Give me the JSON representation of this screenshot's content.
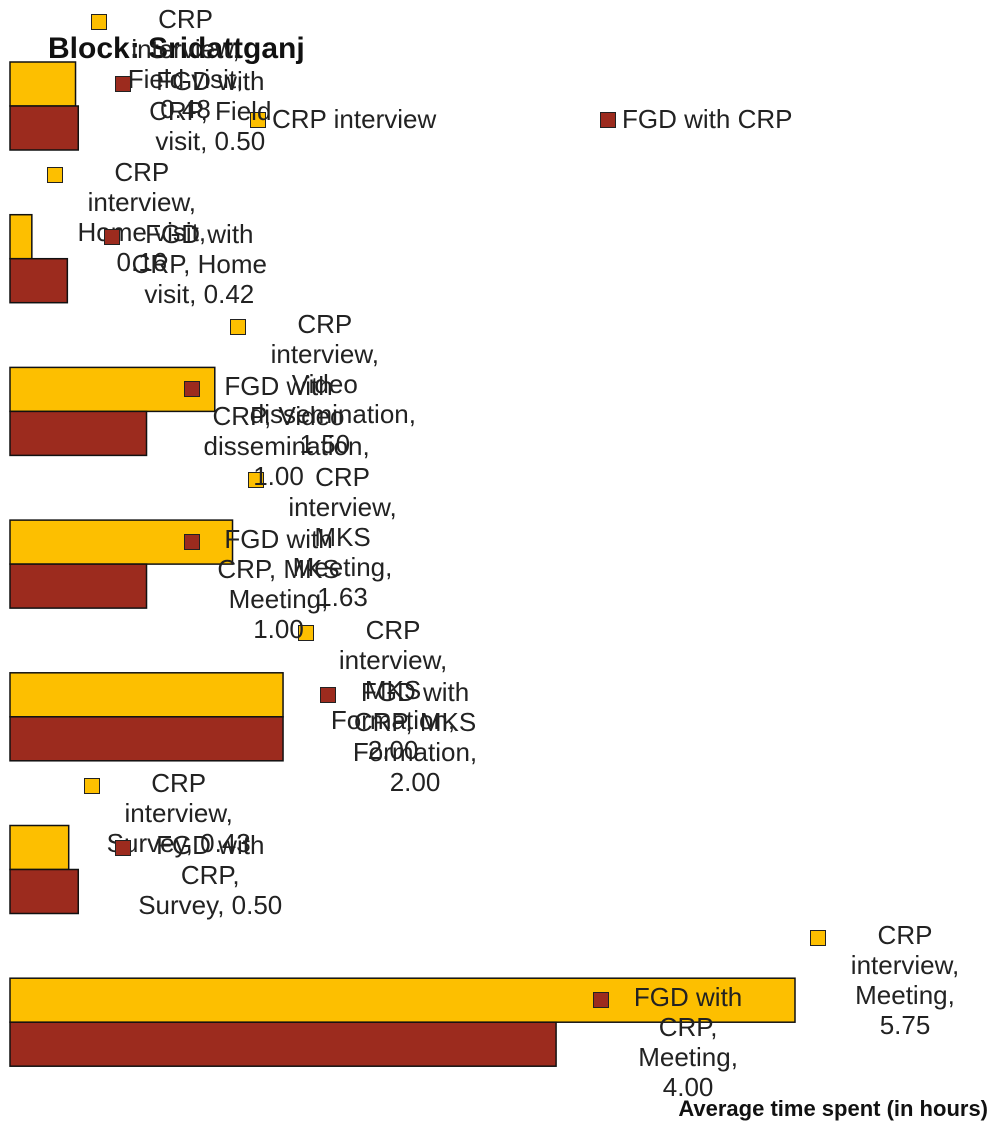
{
  "chart_data": {
    "type": "bar",
    "orientation": "horizontal",
    "title": "Block: Sridattganj",
    "x_label": "Average time spent (in hours)",
    "xlim": [
      0,
      5.75
    ],
    "series": [
      {
        "name": "CRP interview",
        "color": "#fdbf00",
        "values": [
          0.48,
          0.16,
          1.5,
          1.63,
          2.0,
          0.43,
          5.75
        ],
        "value_labels": [
          "CRP interview, Field visit, 0.48",
          "CRP interview, Home visit, 0.16",
          "CRP interview, Video dissemination, 1.50",
          "CRP interview, MKS Meeting, 1.63",
          "CRP interview, MKS Formation, 2.00",
          "CRP interview, Survey, 0.43",
          "CRP interview, Meeting, 5.75"
        ]
      },
      {
        "name": "FGD with CRP",
        "color": "#9c2b1e",
        "values": [
          0.5,
          0.42,
          1.0,
          1.0,
          2.0,
          0.5,
          4.0
        ],
        "value_labels": [
          "FGD with CRP, Field visit, 0.50",
          "FGD with CRP, Home visit, 0.42",
          "FGD with CRP, Video dissemination, 1.00",
          "FGD with CRP, MKS Meeting, 1.00",
          "FGD with CRP, MKS Formation, 2.00",
          "FGD with CRP, Survey, 0.50",
          "FGD with CRP, Meeting, 4.00"
        ]
      }
    ]
  }
}
